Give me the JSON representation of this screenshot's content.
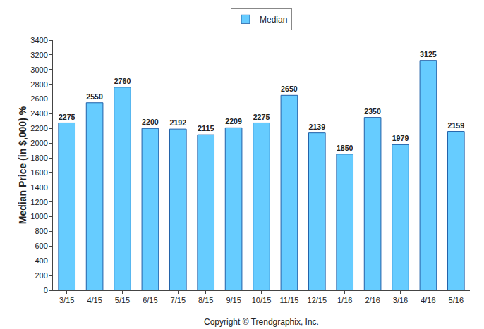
{
  "chart_data": {
    "type": "bar",
    "y_label": "Median Price (in $,000) %",
    "categories": [
      "3/15",
      "4/15",
      "5/15",
      "6/15",
      "7/15",
      "8/15",
      "9/15",
      "10/15",
      "11/15",
      "12/15",
      "1/16",
      "2/16",
      "3/16",
      "4/16",
      "5/16"
    ],
    "series": [
      {
        "name": "Median",
        "color": "#66ccff",
        "values": [
          2275,
          2550,
          2760,
          2200,
          2192,
          2115,
          2209,
          2275,
          2650,
          2139,
          1850,
          2350,
          1979,
          3125,
          2159
        ]
      }
    ],
    "ylim": [
      0,
      3400
    ],
    "yticks": [
      0,
      200,
      400,
      600,
      800,
      1000,
      1200,
      1400,
      1600,
      1800,
      2000,
      2200,
      2400,
      2600,
      2800,
      3000,
      3200,
      3400
    ],
    "grid": false,
    "legend": "top",
    "data_labels": true,
    "annotations": [
      "Copyright © Trendgraphix, Inc."
    ]
  }
}
